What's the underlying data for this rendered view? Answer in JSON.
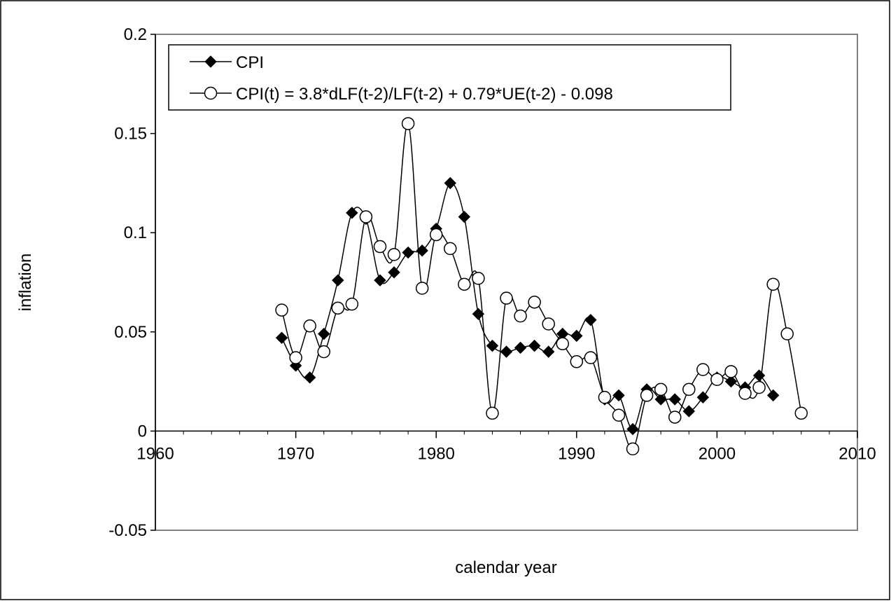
{
  "chart_data": {
    "type": "line",
    "x_label": "calendar year",
    "y_label": "inflation",
    "x": [
      1969,
      1970,
      1971,
      1972,
      1973,
      1974,
      1975,
      1976,
      1977,
      1978,
      1979,
      1980,
      1981,
      1982,
      1983,
      1984,
      1985,
      1986,
      1987,
      1988,
      1989,
      1990,
      1991,
      1992,
      1993,
      1994,
      1995,
      1996,
      1997,
      1998,
      1999,
      2000,
      2001,
      2002,
      2003,
      2004,
      2005,
      2006
    ],
    "series": [
      {
        "name": "CPI",
        "color": "#000000",
        "marker": "diamond",
        "values": [
          0.047,
          0.033,
          0.027,
          0.049,
          0.076,
          0.11,
          0.107,
          0.076,
          0.08,
          0.09,
          0.091,
          0.102,
          0.125,
          0.108,
          0.059,
          0.043,
          0.04,
          0.042,
          0.043,
          0.04,
          0.049,
          0.048,
          0.056,
          0.016,
          0.018,
          0.001,
          0.021,
          0.016,
          0.016,
          0.01,
          0.017,
          0.027,
          0.025,
          0.022,
          0.028,
          0.018,
          null,
          null
        ]
      },
      {
        "name": "CPI(t) = 3.8*dLF(t-2)/LF(t-2) + 0.79*UE(t-2) - 0.098",
        "color": "#000000",
        "marker": "circle",
        "values": [
          0.061,
          0.037,
          0.053,
          0.04,
          0.062,
          0.064,
          0.108,
          0.093,
          0.089,
          0.155,
          0.072,
          0.099,
          0.092,
          0.074,
          0.077,
          0.009,
          0.067,
          0.058,
          0.065,
          0.054,
          0.044,
          0.035,
          0.037,
          0.017,
          0.008,
          -0.009,
          0.018,
          0.021,
          0.007,
          0.021,
          0.031,
          0.026,
          0.03,
          0.019,
          0.022,
          0.074,
          0.049,
          0.009
        ]
      }
    ],
    "xlim": [
      1960,
      2010
    ],
    "xticks": [
      1960,
      1970,
      1980,
      1990,
      2000,
      2010
    ],
    "ylim": [
      -0.05,
      0.2
    ],
    "yticks": [
      -0.05,
      0,
      0.05,
      0.1,
      0.15,
      0.2
    ],
    "grid": false,
    "legend": "top-left"
  }
}
